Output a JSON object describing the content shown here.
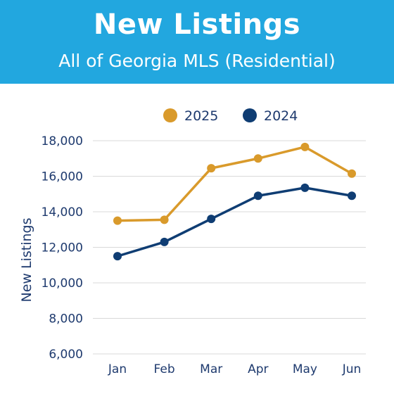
{
  "header": {
    "title": "New Listings",
    "subtitle": "All of Georgia MLS (Residential)"
  },
  "colors": {
    "header_bg": "#22a7df",
    "series_2025": "#d99a2b",
    "series_2024": "#0f3d73",
    "axis_text": "#1e3a6e",
    "grid": "#d9d9d9"
  },
  "chart_data": {
    "type": "line",
    "title": "New Listings",
    "subtitle": "All of Georgia MLS (Residential)",
    "xlabel": "",
    "ylabel": "New Listings",
    "categories": [
      "Jan",
      "Feb",
      "Mar",
      "Apr",
      "May",
      "Jun"
    ],
    "ylim": [
      6000,
      18000
    ],
    "yticks": [
      6000,
      8000,
      10000,
      12000,
      14000,
      16000,
      18000
    ],
    "ytick_labels": [
      "6,000",
      "8,000",
      "10,000",
      "12,000",
      "14,000",
      "16,000",
      "18,000"
    ],
    "grid": true,
    "legend_position": "top",
    "series": [
      {
        "name": "2025",
        "color": "#d99a2b",
        "values": [
          13500,
          13550,
          16450,
          17000,
          17650,
          16150
        ]
      },
      {
        "name": "2024",
        "color": "#0f3d73",
        "values": [
          11500,
          12300,
          13600,
          14900,
          15350,
          14900
        ]
      }
    ]
  }
}
